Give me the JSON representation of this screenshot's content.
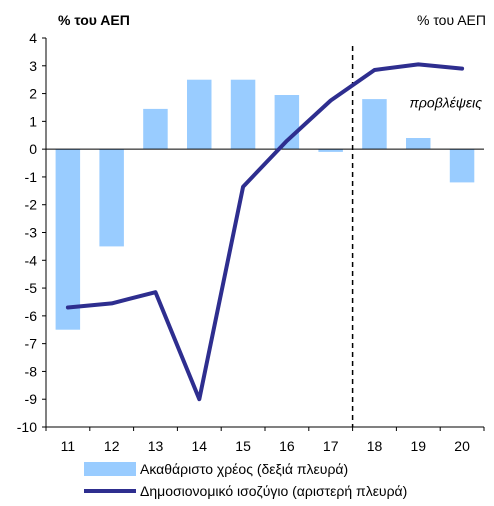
{
  "chart_data": {
    "type": "bar",
    "title_left": "% του ΑΕΠ",
    "title_right": "% του ΑΕΠ",
    "categories": [
      "11",
      "12",
      "13",
      "14",
      "15",
      "16",
      "17",
      "18",
      "19",
      "20"
    ],
    "y_ticks": [
      "4",
      "3",
      "2",
      "1",
      "0",
      "-1",
      "-2",
      "-3",
      "-4",
      "-5",
      "-6",
      "-7",
      "-8",
      "-9",
      "-10"
    ],
    "ylim": [
      -10,
      4
    ],
    "forecast_start_after": "17",
    "forecast_label": "προβλέψεις",
    "series": [
      {
        "name": "Ακαθάριστο χρέος (δεξιά πλευρά)",
        "type": "bar",
        "color": "#99ccff",
        "values": [
          -6.5,
          -3.5,
          1.45,
          2.5,
          2.5,
          1.95,
          -0.1,
          1.8,
          0.4,
          -1.2
        ]
      },
      {
        "name": "Δημοσιονομικό ισοζύγιο (αριστερή πλευρά)",
        "type": "line",
        "color": "#2e2e8f",
        "values": [
          -5.7,
          -5.55,
          -5.15,
          -9.0,
          -1.35,
          0.3,
          1.75,
          2.85,
          3.05,
          2.9
        ]
      }
    ]
  }
}
